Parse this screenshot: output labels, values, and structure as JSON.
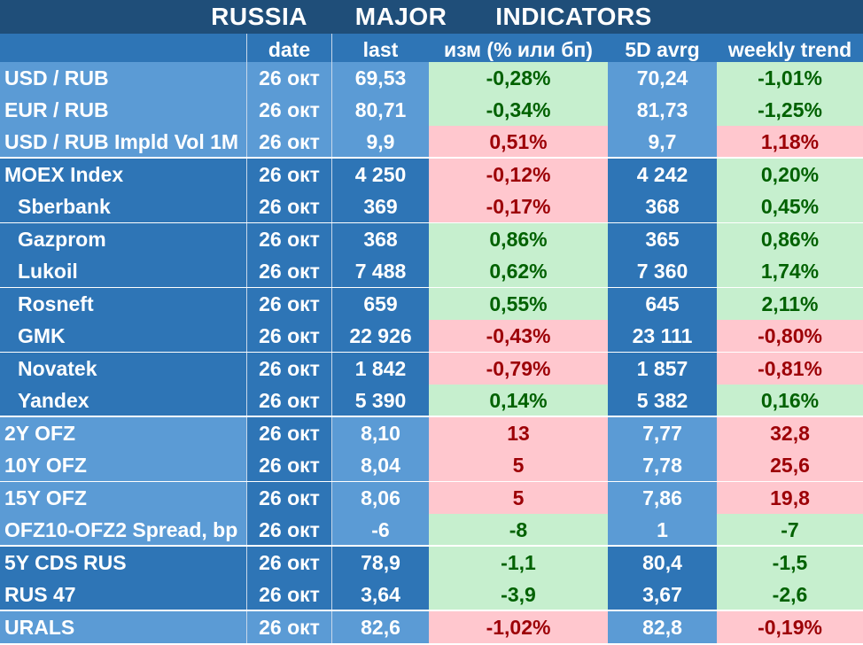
{
  "title": "RUSSIA   MAJOR   INDICATORS",
  "headers": [
    "",
    "date",
    "last",
    "изм (% или бп)",
    "5D avrg",
    "weekly trend"
  ],
  "rows": [
    {
      "name": "USD / RUB",
      "date": "26 окт",
      "last": "69,53",
      "chg": "-0,28%",
      "chg_sign": "pos",
      "avg": "70,24",
      "trend": "-1,01%",
      "trend_sign": "pos",
      "group": "fx",
      "indent": false
    },
    {
      "name": "EUR / RUB",
      "date": "26 окт",
      "last": "80,71",
      "chg": "-0,34%",
      "chg_sign": "pos",
      "avg": "81,73",
      "trend": "-1,25%",
      "trend_sign": "pos",
      "group": "fx",
      "indent": false
    },
    {
      "name": "USD / RUB Impld Vol 1M",
      "date": "26 окт",
      "last": "9,9",
      "chg": "0,51%",
      "chg_sign": "neg",
      "avg": "9,7",
      "trend": "1,18%",
      "trend_sign": "neg",
      "group": "fx",
      "indent": false
    },
    {
      "name": "MOEX Index",
      "date": "26 окт",
      "last": "4 250",
      "chg": "-0,12%",
      "chg_sign": "neg",
      "avg": "4 242",
      "trend": "0,20%",
      "trend_sign": "pos",
      "group": "eq",
      "indent": false
    },
    {
      "name": "Sberbank",
      "date": "26 окт",
      "last": "369",
      "chg": "-0,17%",
      "chg_sign": "neg",
      "avg": "368",
      "trend": "0,45%",
      "trend_sign": "pos",
      "group": "eq",
      "indent": true
    },
    {
      "name": "Gazprom",
      "date": "26 окт",
      "last": "368",
      "chg": "0,86%",
      "chg_sign": "pos",
      "avg": "365",
      "trend": "0,86%",
      "trend_sign": "pos",
      "group": "eq",
      "indent": true
    },
    {
      "name": "Lukoil",
      "date": "26 окт",
      "last": "7 488",
      "chg": "0,62%",
      "chg_sign": "pos",
      "avg": "7 360",
      "trend": "1,74%",
      "trend_sign": "pos",
      "group": "eq",
      "indent": true
    },
    {
      "name": "Rosneft",
      "date": "26 окт",
      "last": "659",
      "chg": "0,55%",
      "chg_sign": "pos",
      "avg": "645",
      "trend": "2,11%",
      "trend_sign": "pos",
      "group": "eq",
      "indent": true
    },
    {
      "name": "GMK",
      "date": "26 окт",
      "last": "22 926",
      "chg": "-0,43%",
      "chg_sign": "neg",
      "avg": "23 111",
      "trend": "-0,80%",
      "trend_sign": "neg",
      "group": "eq",
      "indent": true
    },
    {
      "name": "Novatek",
      "date": "26 окт",
      "last": "1 842",
      "chg": "-0,79%",
      "chg_sign": "neg",
      "avg": "1 857",
      "trend": "-0,81%",
      "trend_sign": "neg",
      "group": "eq",
      "indent": true
    },
    {
      "name": "Yandex",
      "date": "26 окт",
      "last": "5 390",
      "chg": "0,14%",
      "chg_sign": "pos",
      "avg": "5 382",
      "trend": "0,16%",
      "trend_sign": "pos",
      "group": "eq",
      "indent": true
    },
    {
      "name": "2Y OFZ",
      "date": "26 окт",
      "last": "8,10",
      "chg": "13",
      "chg_sign": "neg",
      "avg": "7,77",
      "trend": "32,8",
      "trend_sign": "neg",
      "group": "ofz",
      "indent": false
    },
    {
      "name": "10Y OFZ",
      "date": "26 окт",
      "last": "8,04",
      "chg": "5",
      "chg_sign": "neg",
      "avg": "7,78",
      "trend": "25,6",
      "trend_sign": "neg",
      "group": "ofz",
      "indent": false
    },
    {
      "name": "15Y OFZ",
      "date": "26 окт",
      "last": "8,06",
      "chg": "5",
      "chg_sign": "neg",
      "avg": "7,86",
      "trend": "19,8",
      "trend_sign": "neg",
      "group": "ofz",
      "indent": false
    },
    {
      "name": "OFZ10-OFZ2 Spread, bp",
      "date": "26 окт",
      "last": "-6",
      "chg": "-8",
      "chg_sign": "pos",
      "avg": "1",
      "trend": "-7",
      "trend_sign": "pos",
      "group": "ofz",
      "indent": false
    },
    {
      "name": "5Y CDS RUS",
      "date": "26 окт",
      "last": "78,9",
      "chg": "-1,1",
      "chg_sign": "pos",
      "avg": "80,4",
      "trend": "-1,5",
      "trend_sign": "pos",
      "group": "cds",
      "indent": false
    },
    {
      "name": "RUS 47",
      "date": "26 окт",
      "last": "3,64",
      "chg": "-3,9",
      "chg_sign": "pos",
      "avg": "3,67",
      "trend": "-2,6",
      "trend_sign": "pos",
      "group": "cds",
      "indent": false
    },
    {
      "name": "URALS",
      "date": "26 окт",
      "last": "82,6",
      "chg": "-1,02%",
      "chg_sign": "neg",
      "avg": "82,8",
      "trend": "-0,19%",
      "trend_sign": "neg",
      "group": "oil",
      "indent": false
    }
  ]
}
